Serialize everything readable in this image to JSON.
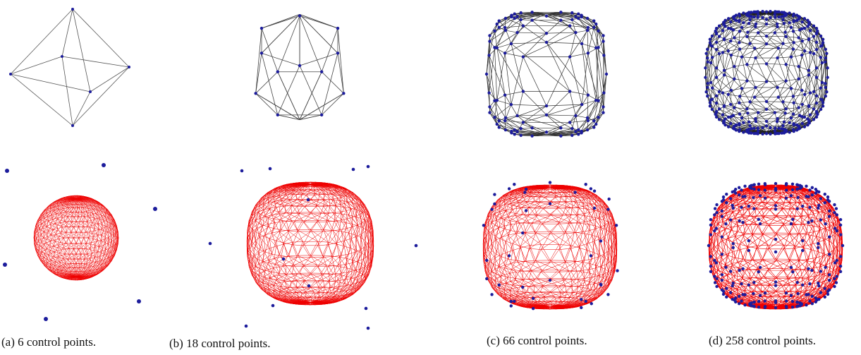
{
  "captions": [
    "(a) 6 control points.",
    "(b) 18 control points.",
    "(c) 66 control points.",
    "(d) 258 control points."
  ]
}
